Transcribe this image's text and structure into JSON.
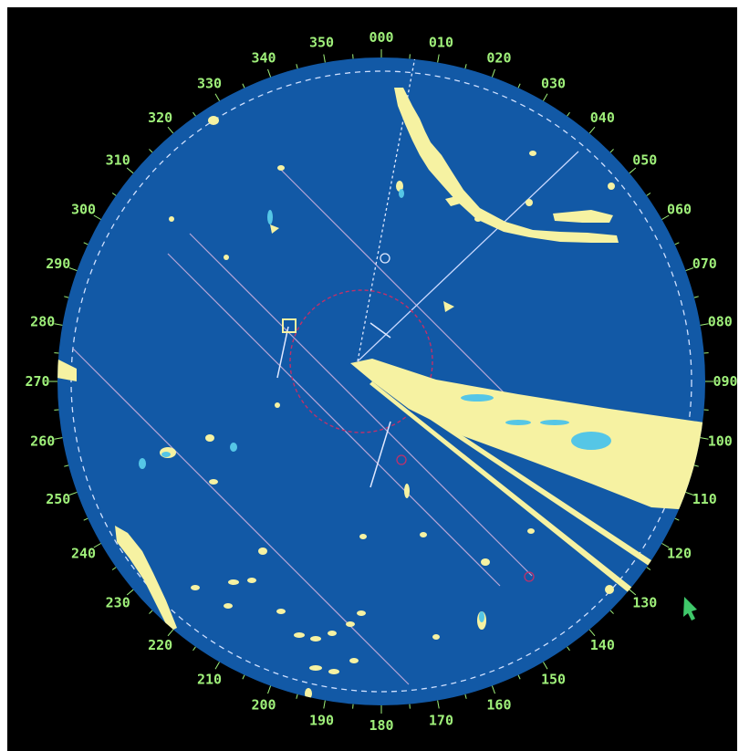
{
  "radar": {
    "bearing_labels": [
      "000",
      "010",
      "020",
      "030",
      "040",
      "050",
      "060",
      "070",
      "080",
      "090",
      "100",
      "110",
      "120",
      "130",
      "140",
      "150",
      "160",
      "170",
      "180",
      "190",
      "200",
      "210",
      "220",
      "230",
      "240",
      "250",
      "260",
      "270",
      "280",
      "290",
      "300",
      "310",
      "320",
      "330",
      "340",
      "350"
    ],
    "colors": {
      "background": "#000000",
      "scope": "#1259a6",
      "echo": "#f6f2a2",
      "echo_cyan": "#55c6e6",
      "label": "#9ff07a",
      "line": "#c8d8ff",
      "parallel_index": "#b7a6d8",
      "vrm": "#c0306a",
      "cursor": "#3fc86a"
    },
    "icons": {
      "cursor": "cursor-arrow-icon",
      "target": "target-square-icon"
    }
  }
}
